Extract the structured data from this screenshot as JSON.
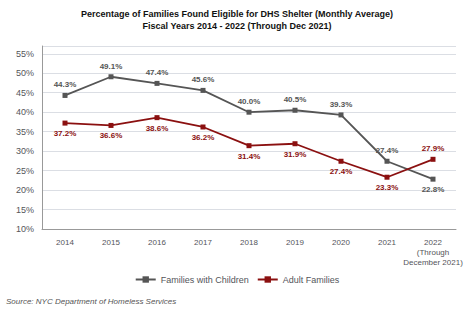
{
  "chart_data": {
    "type": "line",
    "title": "Percentage of Families Found Eligible for DHS Shelter (Monthly Average)",
    "subtitle": "Fiscal Years 2014 - 2022 (Through Dec 2021)",
    "categories": [
      "2014",
      "2015",
      "2016",
      "2017",
      "2018",
      "2019",
      "2020",
      "2021",
      "2022\n(Through\nDecember 2021)"
    ],
    "series": [
      {
        "name": "Families with Children",
        "color": "#555555",
        "marker": "square",
        "values": [
          44.3,
          49.1,
          47.4,
          45.6,
          40.0,
          40.5,
          39.3,
          27.4,
          22.8
        ],
        "value_labels": [
          "44.3%",
          "49.1%",
          "47.4%",
          "45.6%",
          "40.0%",
          "40.5%",
          "39.3%",
          "27.4%",
          "22.8%"
        ]
      },
      {
        "name": "Adult Families",
        "color": "#8b1010",
        "marker": "square",
        "values": [
          37.2,
          36.6,
          38.6,
          36.2,
          31.4,
          31.9,
          27.4,
          23.3,
          27.9
        ],
        "value_labels": [
          "37.2%",
          "36.6%",
          "38.6%",
          "36.2%",
          "31.4%",
          "31.9%",
          "27.4%",
          "23.3%",
          "27.9%"
        ]
      }
    ],
    "ylim": [
      10,
      57
    ],
    "yticks": [
      {
        "value": 10,
        "label": "10%"
      },
      {
        "value": 15,
        "label": "15%"
      },
      {
        "value": 20,
        "label": "20%"
      },
      {
        "value": 25,
        "label": "25%"
      },
      {
        "value": 30,
        "label": "30%"
      },
      {
        "value": 35,
        "label": "35%"
      },
      {
        "value": 40,
        "label": "40%"
      },
      {
        "value": 45,
        "label": "45%"
      },
      {
        "value": 50,
        "label": "50%"
      },
      {
        "value": 55,
        "label": "55%"
      }
    ],
    "grid": true,
    "legend": "bottom",
    "data_labels": true,
    "annotations": [
      "Source: NYC Department of Homeless Services"
    ]
  }
}
